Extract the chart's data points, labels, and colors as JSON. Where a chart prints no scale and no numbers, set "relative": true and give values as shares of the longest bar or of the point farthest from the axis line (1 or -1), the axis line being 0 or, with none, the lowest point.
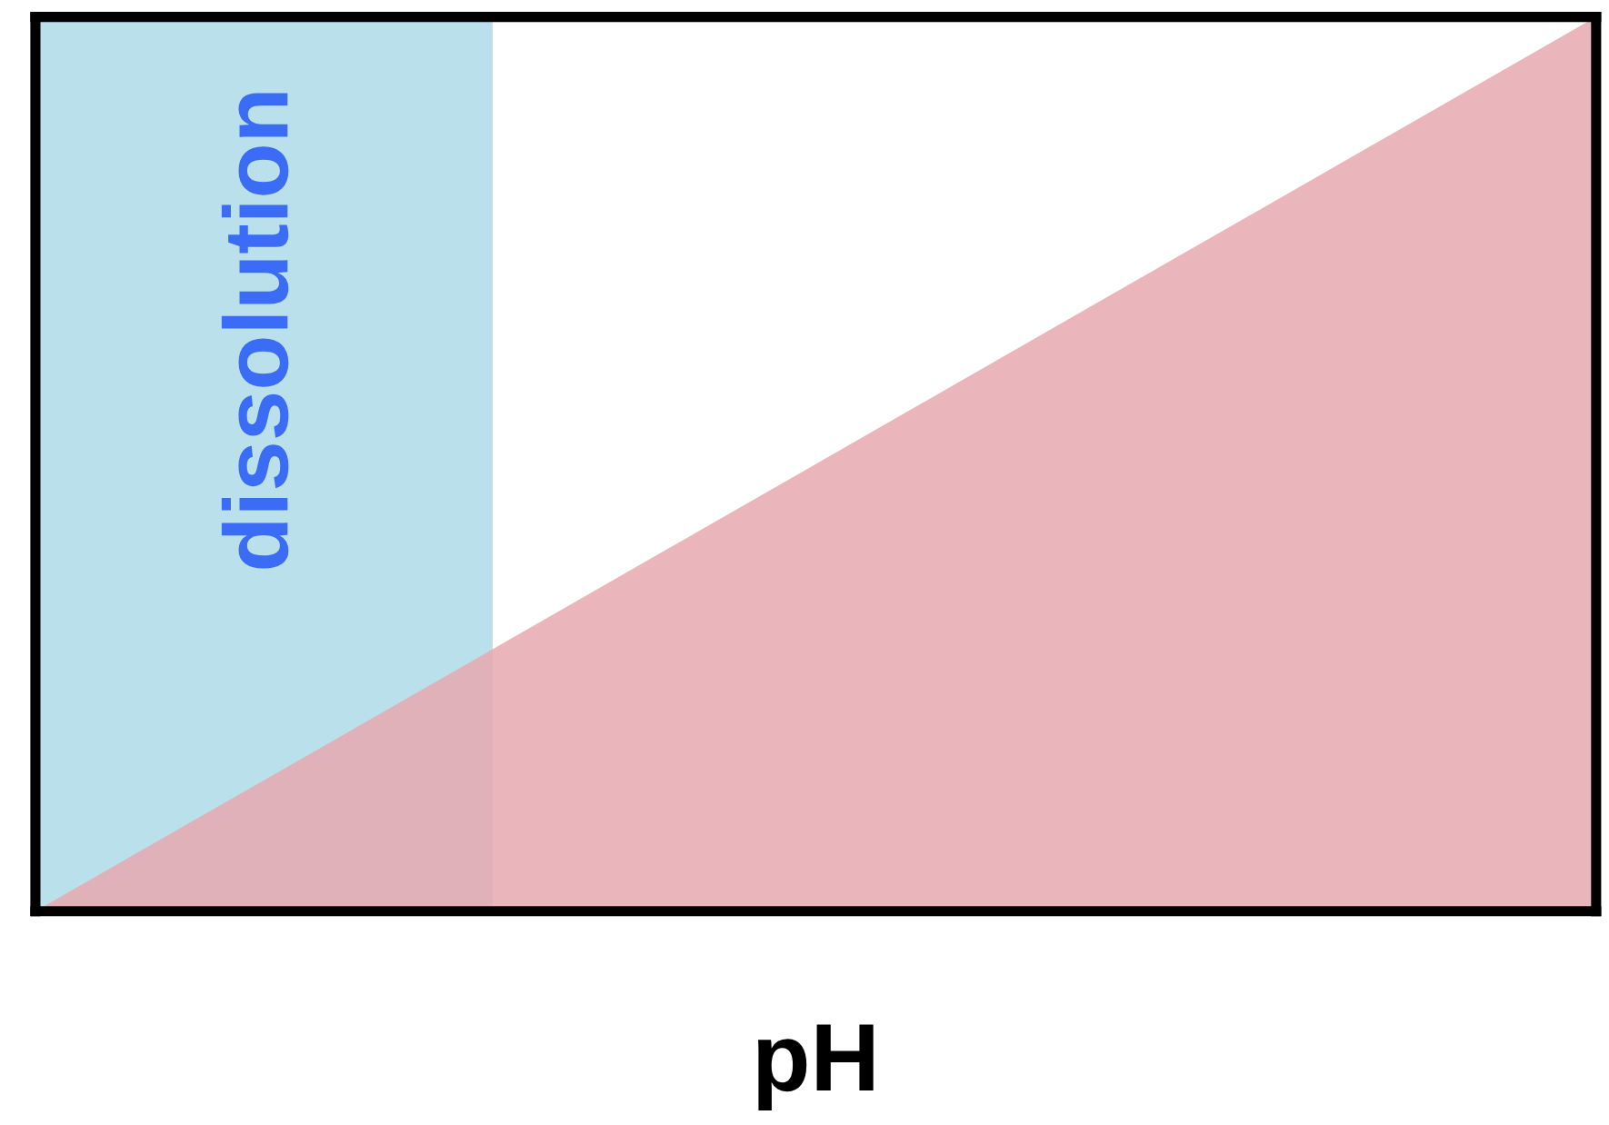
{
  "chart_data": {
    "type": "area",
    "xlabel": "pH",
    "relative": true,
    "categories": [
      null,
      null,
      null,
      null,
      null,
      null,
      null,
      null,
      null,
      null,
      null
    ],
    "series": [
      {
        "color": "#e8a8b0",
        "values": [
          0,
          0.1,
          0.2,
          0.3,
          0.4,
          0.5,
          0.6,
          0.7,
          0.8,
          0.9,
          1
        ]
      }
    ],
    "annotations": [
      "dissolution"
    ]
  }
}
